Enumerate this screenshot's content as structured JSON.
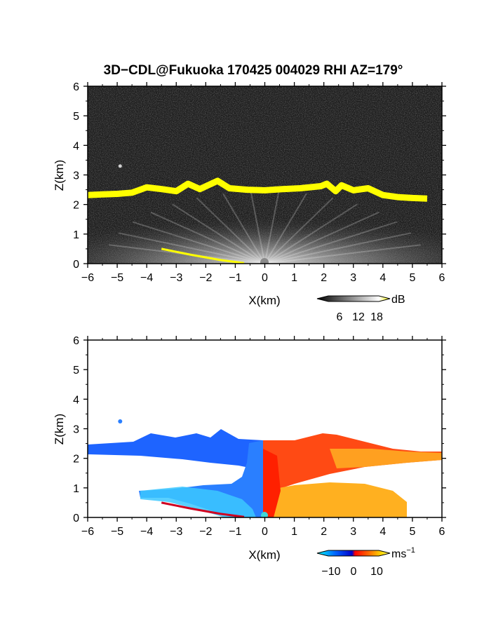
{
  "chart_data": {
    "type": "heatmap",
    "title": "3D−CDL@Fukuoka 170425 004029 RHI AZ=179°",
    "panels": [
      {
        "id": "reflectivity",
        "xlabel": "X(km)",
        "ylabel": "Z(km)",
        "xlim": [
          -6,
          6
        ],
        "ylim": [
          0,
          6
        ],
        "xticks": [
          "−6",
          "−5",
          "−4",
          "−3",
          "−2",
          "−1",
          "0",
          "1",
          "2",
          "3",
          "4",
          "5",
          "6"
        ],
        "yticks": [
          "0",
          "1",
          "2",
          "3",
          "4",
          "5",
          "6"
        ],
        "colorbar": {
          "unit": "dB",
          "ticks": [
            "6",
            "12",
            "18"
          ],
          "range": [
            0,
            20
          ],
          "colors": [
            "#000000",
            "#ffffff",
            "#ffff00"
          ]
        },
        "cloud_top_height_km": [
          {
            "x": -6.0,
            "z": 2.32
          },
          {
            "x": -5.5,
            "z": 2.34
          },
          {
            "x": -5.0,
            "z": 2.36
          },
          {
            "x": -4.5,
            "z": 2.4
          },
          {
            "x": -4.0,
            "z": 2.58
          },
          {
            "x": -3.5,
            "z": 2.52
          },
          {
            "x": -3.0,
            "z": 2.45
          },
          {
            "x": -2.6,
            "z": 2.7
          },
          {
            "x": -2.2,
            "z": 2.52
          },
          {
            "x": -1.6,
            "z": 2.8
          },
          {
            "x": -1.2,
            "z": 2.55
          },
          {
            "x": -0.6,
            "z": 2.5
          },
          {
            "x": 0.0,
            "z": 2.48
          },
          {
            "x": 0.6,
            "z": 2.52
          },
          {
            "x": 1.2,
            "z": 2.55
          },
          {
            "x": 1.9,
            "z": 2.62
          },
          {
            "x": 2.1,
            "z": 2.7
          },
          {
            "x": 2.4,
            "z": 2.45
          },
          {
            "x": 2.6,
            "z": 2.65
          },
          {
            "x": 3.0,
            "z": 2.48
          },
          {
            "x": 3.5,
            "z": 2.55
          },
          {
            "x": 4.0,
            "z": 2.32
          },
          {
            "x": 4.5,
            "z": 2.25
          },
          {
            "x": 5.0,
            "z": 2.22
          },
          {
            "x": 5.5,
            "z": 2.2
          }
        ],
        "ground_echo": [
          {
            "x": -3.5,
            "z": 0.5
          },
          {
            "x": -2.5,
            "z": 0.3
          },
          {
            "x": -1.5,
            "z": 0.12
          },
          {
            "x": -0.7,
            "z": 0.02
          }
        ],
        "isolated_echo": {
          "x": -4.9,
          "z": 3.3
        }
      },
      {
        "id": "doppler_velocity",
        "xlabel": "X(km)",
        "ylabel": "Z(km)",
        "xlim": [
          -6,
          6
        ],
        "ylim": [
          0,
          6
        ],
        "xticks": [
          "−6",
          "−5",
          "−4",
          "−3",
          "−2",
          "−1",
          "0",
          "1",
          "2",
          "3",
          "4",
          "5",
          "6"
        ],
        "yticks": [
          "0",
          "1",
          "2",
          "3",
          "4",
          "5",
          "6"
        ],
        "colorbar": {
          "unit": "ms",
          "unit_exponent": "−1",
          "ticks": [
            "−10",
            "0",
            "10"
          ],
          "range": [
            -15,
            15
          ],
          "colors": [
            "#00ffff",
            "#0064ff",
            "#0000c8",
            "#ff0000",
            "#ff6400",
            "#ffd700",
            "#ffff80"
          ]
        },
        "cloud_top_height_km": [
          {
            "x": -6.0,
            "z": 2.4
          },
          {
            "x": -5.0,
            "z": 2.42
          },
          {
            "x": -4.2,
            "z": 2.6
          },
          {
            "x": -3.2,
            "z": 2.55
          },
          {
            "x": -2.6,
            "z": 2.75
          },
          {
            "x": -1.6,
            "z": 3.0
          },
          {
            "x": -1.0,
            "z": 2.7
          },
          {
            "x": 0.0,
            "z": 2.62
          },
          {
            "x": 1.0,
            "z": 2.65
          },
          {
            "x": 2.0,
            "z": 2.8
          },
          {
            "x": 3.0,
            "z": 2.55
          },
          {
            "x": 4.0,
            "z": 2.4
          },
          {
            "x": 5.0,
            "z": 2.3
          },
          {
            "x": 6.0,
            "z": 2.25
          }
        ],
        "velocity_sign": "negative for X<0 (toward radar), positive for X>0 (away)",
        "isolated_echo": {
          "x": -4.9,
          "z": 3.25
        }
      }
    ]
  }
}
